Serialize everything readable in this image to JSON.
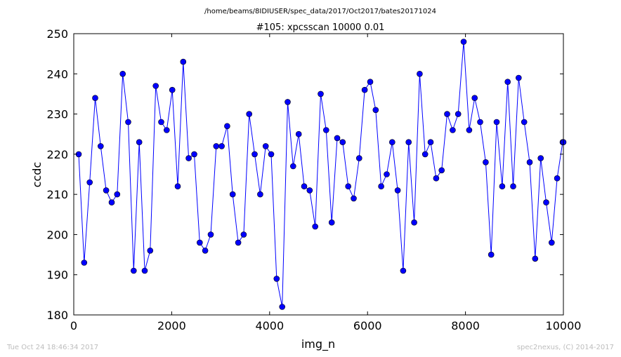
{
  "chart_data": {
    "type": "line",
    "suptitle": "/home/beams/8IDIUSER/spec_data/2017/Oct2017/bates20171024",
    "title": "#105: xpcsscan 10000 0.01",
    "xlabel": "img_n",
    "ylabel": "ccdc",
    "xlim": [
      0,
      10000
    ],
    "ylim": [
      180,
      250
    ],
    "xticks": [
      "0",
      "2000",
      "4000",
      "6000",
      "8000",
      "10000"
    ],
    "yticks": [
      "180",
      "190",
      "200",
      "210",
      "220",
      "230",
      "240",
      "250"
    ],
    "line_color": "#0000ff",
    "marker_color": "#0000ff",
    "grid": false,
    "series": [
      {
        "x": [
          101,
          213,
          325,
          438,
          550,
          662,
          775,
          887,
          1000,
          1112,
          1224,
          1337,
          1449,
          1561,
          1674,
          1786,
          1898,
          2011,
          2123,
          2235,
          2347,
          2460,
          2572,
          2684,
          2797,
          2909,
          3021,
          3134,
          3246,
          3358,
          3471,
          3583,
          3695,
          3808,
          3920,
          4032,
          4144,
          4257,
          4369,
          4481,
          4594,
          4706,
          4818,
          4931,
          5043,
          5155,
          5268,
          5380,
          5492,
          5605,
          5717,
          5829,
          5941,
          6054,
          6166,
          6278,
          6391,
          6503,
          6615,
          6728,
          6840,
          6952,
          7065,
          7177,
          7289,
          7402,
          7514,
          7626,
          7739,
          7851,
          7963,
          8076,
          8188,
          8300,
          8413,
          8525,
          8637,
          8750,
          8862,
          8974,
          9086,
          9199,
          9311,
          9423,
          9536,
          9648,
          9760,
          9873,
          9985,
          10000
        ],
        "y": [
          220,
          193,
          213,
          234,
          222,
          211,
          208,
          210,
          240,
          228,
          191,
          223,
          191,
          196,
          237,
          228,
          226,
          236,
          212,
          243,
          219,
          220,
          198,
          196,
          200,
          222,
          222,
          227,
          210,
          198,
          200,
          230,
          220,
          210,
          222,
          220,
          189,
          182,
          233,
          217,
          225,
          212,
          211,
          202,
          235,
          226,
          203,
          224,
          223,
          212,
          209,
          219,
          236,
          238,
          231,
          212,
          215,
          223,
          211,
          191,
          223,
          203,
          240,
          220,
          223,
          214,
          216,
          230,
          226,
          230,
          248,
          226,
          234,
          228,
          218,
          195,
          228,
          212,
          238,
          212,
          239,
          228,
          218,
          194,
          219,
          208,
          198,
          214,
          223,
          223
        ]
      }
    ]
  },
  "footer": {
    "timestamp": "Tue Oct 24 18:46:34 2017",
    "credit": "spec2nexus, (C) 2014-2017"
  }
}
